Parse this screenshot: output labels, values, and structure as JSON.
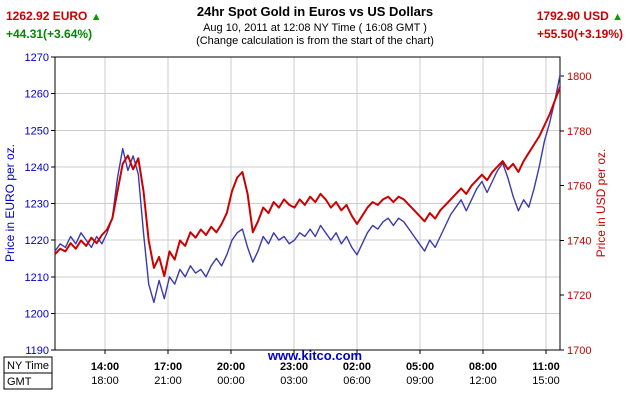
{
  "header": {
    "euro": {
      "price": "1262.92 EURO",
      "arrow": "▲",
      "change": "+44.31(+3.64%)"
    },
    "usd": {
      "price": "1792.90 USD",
      "arrow": "▲",
      "change": "+55.50(+3.19%)"
    },
    "title": "24hr Spot Gold in Euros vs US Dollars",
    "subtitle": "Aug 10, 2011 at 12:08 NY Time ( 16:08 GMT )",
    "note": "(Change calculation is from the start of the chart)"
  },
  "footer": {
    "website": "www.kitco.com",
    "axis_box": {
      "line1": "NY Time",
      "line2": "GMT"
    }
  },
  "chart_data": {
    "type": "line",
    "title": "24hr Spot Gold in Euros vs US Dollars",
    "grid": true,
    "legend_position": "none",
    "left_axis": {
      "label": "Price in EURO per oz.",
      "min": 1190,
      "max": 1270,
      "ticks": [
        1190,
        1200,
        1210,
        1220,
        1230,
        1240,
        1250,
        1260,
        1270
      ],
      "color": "#0000cc"
    },
    "right_axis": {
      "label": "Price in USD per oz.",
      "min": 1700,
      "max": 1807,
      "ticks": [
        1700,
        1720,
        1740,
        1760,
        1780,
        1800
      ],
      "color": "#cc0000"
    },
    "x_ticks": [
      {
        "ny": "14:00",
        "gmt": "18:00",
        "f": 0.099
      },
      {
        "ny": "17:00",
        "gmt": "21:00",
        "f": 0.2238
      },
      {
        "ny": "20:00",
        "gmt": "00:00",
        "f": 0.3485
      },
      {
        "ny": "23:00",
        "gmt": "03:00",
        "f": 0.4733
      },
      {
        "ny": "02:00",
        "gmt": "06:00",
        "f": 0.598
      },
      {
        "ny": "05:00",
        "gmt": "09:00",
        "f": 0.7228
      },
      {
        "ny": "08:00",
        "gmt": "12:00",
        "f": 0.8475
      },
      {
        "ny": "11:00",
        "gmt": "15:00",
        "f": 0.9723
      }
    ],
    "series": [
      {
        "name": "EURO",
        "axis": "left",
        "color": "#3a3aad",
        "width": 1.4,
        "values": [
          1217,
          1219,
          1218,
          1221,
          1219,
          1222,
          1220,
          1218,
          1221,
          1219,
          1222,
          1226,
          1237,
          1245,
          1239,
          1243,
          1238,
          1222,
          1208,
          1203,
          1209,
          1204,
          1210,
          1208,
          1212,
          1210,
          1213,
          1211,
          1212,
          1210,
          1213,
          1215,
          1213,
          1216,
          1220,
          1222,
          1223,
          1218,
          1214,
          1217,
          1221,
          1219,
          1222,
          1220,
          1221,
          1219,
          1220,
          1222,
          1221,
          1223,
          1221,
          1224,
          1222,
          1220,
          1222,
          1219,
          1221,
          1218,
          1216,
          1219,
          1222,
          1224,
          1223,
          1225,
          1226,
          1224,
          1226,
          1225,
          1223,
          1221,
          1219,
          1217,
          1220,
          1218,
          1221,
          1224,
          1227,
          1229,
          1231,
          1228,
          1231,
          1234,
          1236,
          1233,
          1236,
          1239,
          1241,
          1237,
          1232,
          1228,
          1231,
          1229,
          1234,
          1240,
          1247,
          1252,
          1258,
          1265
        ]
      },
      {
        "name": "USD",
        "axis": "right",
        "color": "#cc0000",
        "width": 2,
        "values": [
          1735,
          1737,
          1736,
          1739,
          1737,
          1740,
          1738,
          1741,
          1739,
          1742,
          1744,
          1748,
          1758,
          1768,
          1771,
          1766,
          1770,
          1758,
          1740,
          1730,
          1734,
          1727,
          1736,
          1733,
          1740,
          1738,
          1743,
          1741,
          1744,
          1742,
          1745,
          1743,
          1746,
          1750,
          1758,
          1763,
          1765,
          1757,
          1743,
          1747,
          1752,
          1750,
          1754,
          1752,
          1755,
          1753,
          1752,
          1755,
          1753,
          1756,
          1754,
          1757,
          1755,
          1752,
          1754,
          1751,
          1753,
          1749,
          1746,
          1749,
          1752,
          1754,
          1753,
          1755,
          1756,
          1754,
          1756,
          1755,
          1753,
          1751,
          1749,
          1747,
          1750,
          1748,
          1751,
          1753,
          1755,
          1757,
          1759,
          1757,
          1760,
          1762,
          1764,
          1762,
          1765,
          1767,
          1769,
          1766,
          1768,
          1765,
          1769,
          1772,
          1775,
          1778,
          1782,
          1786,
          1791,
          1796
        ]
      }
    ]
  }
}
